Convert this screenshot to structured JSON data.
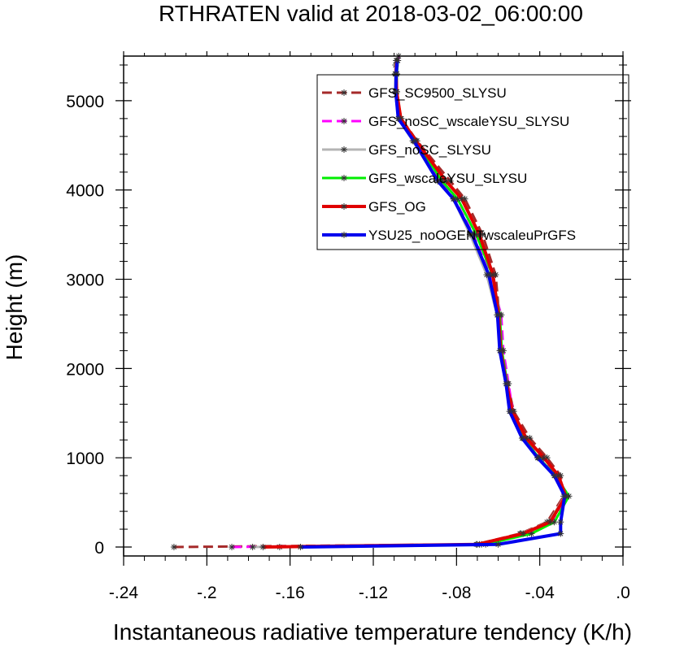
{
  "chart_data": {
    "type": "line",
    "title": "RTHRATEN valid at 2018-03-02_06:00:00",
    "xlabel": "Instantaneous radiative temperature tendency (K/h)",
    "ylabel": "Height (m)",
    "xlim": [
      -0.24,
      0.0
    ],
    "ylim": [
      -100,
      5500
    ],
    "x_ticks": [
      -0.24,
      -0.2,
      -0.16,
      -0.12,
      -0.08,
      -0.04,
      0.0
    ],
    "x_tick_labels": [
      "-.24",
      "-.2",
      "-.16",
      "-.12",
      "-.08",
      "-.04",
      ".0"
    ],
    "y_ticks": [
      0,
      1000,
      2000,
      3000,
      4000,
      5000
    ],
    "y_tick_labels": [
      "0",
      "1000",
      "2000",
      "3000",
      "4000",
      "5000"
    ],
    "legend_position": "top-right",
    "series": [
      {
        "name": "GFS_SC9500_SLYSU",
        "color": "#a52a2a",
        "dash": "dash",
        "width": 3,
        "x": [
          -0.2158,
          -0.0705,
          -0.0495,
          -0.0365,
          -0.0285,
          -0.03,
          -0.0365,
          -0.0448,
          -0.0525,
          -0.0555,
          -0.0585,
          -0.0595,
          -0.0612,
          -0.0675,
          -0.076,
          -0.083,
          -0.099,
          -0.1065,
          -0.109,
          -0.1095,
          -0.1093
        ],
        "y": [
          0,
          30,
          150,
          280,
          570,
          800,
          1000,
          1220,
          1520,
          1830,
          2200,
          2600,
          3050,
          3500,
          3900,
          4100,
          4550,
          4800,
          5100,
          5300,
          5400
        ]
      },
      {
        "name": "GFS_noSC_wscaleYSU_SLYSU",
        "color": "#ff00ff",
        "dash": "dash",
        "width": 3,
        "x": [
          -0.188,
          -0.068,
          -0.046,
          -0.0345,
          -0.027,
          -0.032,
          -0.0395,
          -0.047,
          -0.053,
          -0.055,
          -0.0575,
          -0.0585,
          -0.064,
          -0.072,
          -0.081,
          -0.088,
          -0.1,
          -0.1075,
          -0.1088,
          -0.1088,
          -0.1078
        ],
        "y": [
          0,
          30,
          150,
          280,
          570,
          800,
          1000,
          1220,
          1520,
          1830,
          2200,
          2600,
          3050,
          3500,
          3900,
          4100,
          4550,
          4800,
          5100,
          5300,
          5500
        ]
      },
      {
        "name": "GFS_noSC_SLYSU",
        "color": "#b4b4b4",
        "dash": "solid",
        "width": 3,
        "x": [
          -0.178,
          -0.069,
          -0.049,
          -0.0355,
          -0.028,
          -0.033,
          -0.041,
          -0.048,
          -0.054,
          -0.056,
          -0.059,
          -0.0605,
          -0.0655,
          -0.0735,
          -0.0815,
          -0.089,
          -0.101,
          -0.108,
          -0.1095,
          -0.1095,
          -0.109
        ],
        "y": [
          0,
          30,
          150,
          280,
          570,
          800,
          1000,
          1220,
          1520,
          1830,
          2200,
          2600,
          3050,
          3500,
          3900,
          4100,
          4550,
          4800,
          5100,
          5300,
          5450
        ]
      },
      {
        "name": "GFS_wscaleYSU_SLYSU",
        "color": "#00ee00",
        "dash": "solid",
        "width": 3,
        "x": [
          -0.165,
          -0.066,
          -0.044,
          -0.033,
          -0.026,
          -0.0325,
          -0.0405,
          -0.0478,
          -0.0538,
          -0.0556,
          -0.0582,
          -0.0592,
          -0.0628,
          -0.0705,
          -0.0795,
          -0.087,
          -0.0995,
          -0.1072,
          -0.1087,
          -0.1087,
          -0.1082
        ],
        "y": [
          0,
          30,
          150,
          280,
          570,
          800,
          1000,
          1220,
          1520,
          1830,
          2200,
          2600,
          3050,
          3500,
          3900,
          4100,
          4550,
          4800,
          5100,
          5300,
          5450
        ]
      },
      {
        "name": "GFS_OG",
        "color": "#e00000",
        "dash": "solid",
        "width": 4,
        "x": [
          -0.173,
          -0.07,
          -0.048,
          -0.035,
          -0.0275,
          -0.031,
          -0.038,
          -0.0465,
          -0.0532,
          -0.056,
          -0.0588,
          -0.0598,
          -0.0625,
          -0.069,
          -0.0775,
          -0.085,
          -0.0995,
          -0.1068,
          -0.1088,
          -0.109,
          -0.1088
        ],
        "y": [
          0,
          30,
          150,
          280,
          570,
          800,
          1000,
          1220,
          1520,
          1830,
          2200,
          2600,
          3050,
          3500,
          3900,
          4100,
          4550,
          4800,
          5100,
          5300,
          5450
        ]
      },
      {
        "name": "YSU25_noOGENTwscaleuPrGFS",
        "color": "#0000ee",
        "dash": "solid",
        "width": 4,
        "x": [
          -0.155,
          -0.06,
          -0.03,
          -0.03,
          -0.028,
          -0.033,
          -0.041,
          -0.0485,
          -0.0545,
          -0.0562,
          -0.0592,
          -0.0603,
          -0.0645,
          -0.0725,
          -0.0815,
          -0.089,
          -0.1005,
          -0.108,
          -0.1092,
          -0.109,
          -0.1085
        ],
        "y": [
          0,
          30,
          150,
          280,
          570,
          800,
          1000,
          1220,
          1520,
          1830,
          2200,
          2600,
          3050,
          3500,
          3900,
          4100,
          4550,
          4800,
          5100,
          5300,
          5450
        ]
      }
    ]
  }
}
